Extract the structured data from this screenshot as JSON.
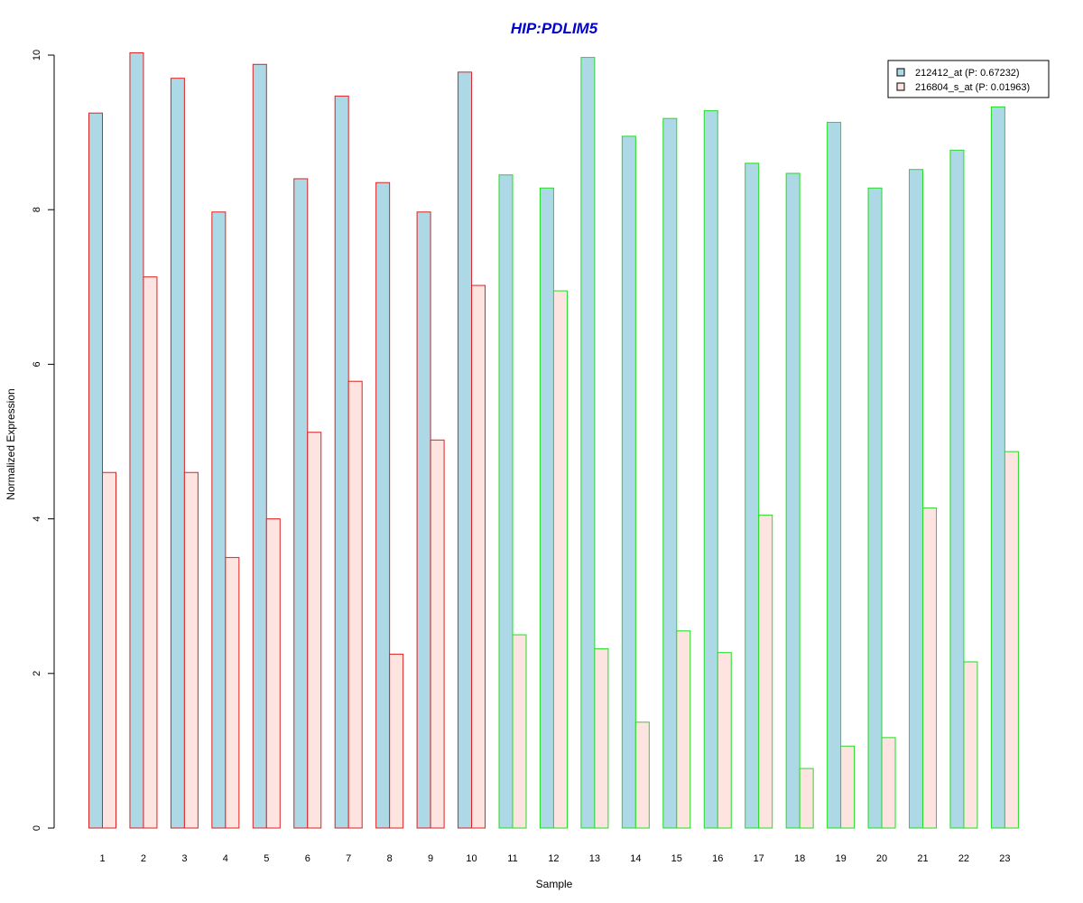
{
  "chart_data": {
    "type": "bar",
    "title": "HIP:PDLIM5",
    "title_color": "#0000cc",
    "xlabel": "Sample",
    "ylabel": "Normalized Expression",
    "ylim": [
      0,
      10
    ],
    "yticks": [
      0,
      2,
      4,
      6,
      8,
      10
    ],
    "categories": [
      "1",
      "2",
      "3",
      "4",
      "5",
      "6",
      "7",
      "8",
      "9",
      "10",
      "11",
      "12",
      "13",
      "14",
      "15",
      "16",
      "17",
      "18",
      "19",
      "20",
      "21",
      "22",
      "23"
    ],
    "series": [
      {
        "name": "212412_at (P: 0.67232)",
        "fill": "#add8e6",
        "values": [
          9.25,
          10.03,
          9.7,
          7.97,
          9.88,
          8.4,
          9.47,
          8.35,
          7.97,
          9.78,
          8.45,
          8.28,
          9.97,
          8.95,
          9.18,
          9.28,
          8.6,
          8.47,
          9.13,
          8.28,
          8.52,
          8.77,
          9.33
        ]
      },
      {
        "name": "216804_s_at (P: 0.01963)",
        "fill": "#fde4e0",
        "values": [
          4.6,
          7.13,
          4.6,
          3.5,
          4.0,
          5.12,
          5.78,
          2.25,
          5.02,
          7.02,
          2.5,
          6.95,
          2.32,
          1.37,
          2.55,
          2.27,
          4.05,
          0.77,
          1.06,
          1.17,
          4.14,
          2.15,
          4.87
        ]
      }
    ],
    "groups": [
      {
        "samples": [
          "1",
          "2",
          "3",
          "4",
          "5",
          "6",
          "7",
          "8",
          "9",
          "10"
        ],
        "border_color": "#dd2222"
      },
      {
        "samples": [
          "11",
          "12",
          "13",
          "14",
          "15",
          "16",
          "17",
          "18",
          "19",
          "20",
          "21",
          "22",
          "23"
        ],
        "border_color": "#22dd22"
      }
    ],
    "legend_position": "top-right",
    "grid": false
  }
}
